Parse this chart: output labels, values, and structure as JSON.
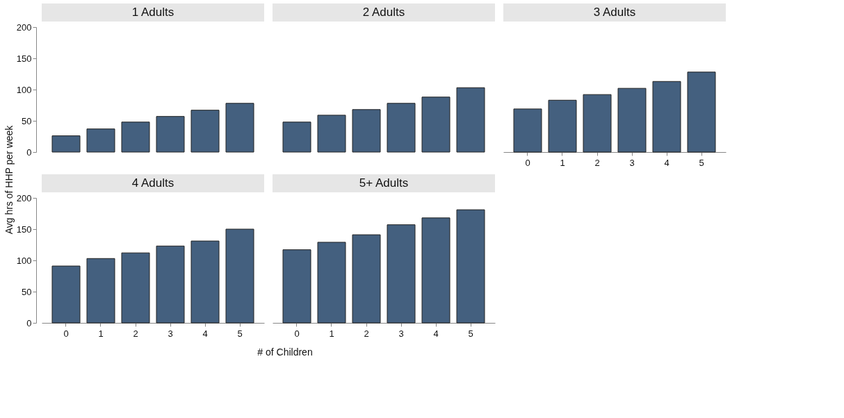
{
  "chart_data": [
    {
      "type": "bar",
      "title": "1 Adults",
      "ylabel": "Avg hrs of HHP per week",
      "categories": [
        "0",
        "1",
        "2",
        "3",
        "4",
        "5"
      ],
      "values": [
        26,
        37,
        48,
        57,
        67,
        78
      ],
      "color": "#44607f",
      "ylim": [
        0,
        200
      ],
      "yticks": [
        0,
        50,
        100,
        150,
        200
      ],
      "tick_labels": "y"
    },
    {
      "type": "bar",
      "title": "2 Adults",
      "categories": [
        "0",
        "1",
        "2",
        "3",
        "4",
        "5"
      ],
      "values": [
        48,
        59,
        68,
        78,
        88,
        103
      ],
      "color": "#44607f",
      "ylim": [
        0,
        200
      ],
      "yticks": [
        0,
        50,
        100,
        150,
        200
      ],
      "tick_labels": false
    },
    {
      "type": "bar",
      "title": "3 Adults",
      "categories": [
        "0",
        "1",
        "2",
        "3",
        "4",
        "5"
      ],
      "values": [
        69,
        83,
        92,
        102,
        113,
        128
      ],
      "color": "#44607f",
      "ylim": [
        0,
        200
      ],
      "yticks": [
        0,
        50,
        100,
        150,
        200
      ],
      "tick_labels": "x"
    },
    {
      "type": "bar",
      "title": "4 Adults",
      "xlabel": "# of Children",
      "categories": [
        "0",
        "1",
        "2",
        "3",
        "4",
        "5"
      ],
      "values": [
        91,
        103,
        112,
        123,
        131,
        150
      ],
      "color": "#44607f",
      "ylim": [
        0,
        200
      ],
      "yticks": [
        0,
        50,
        100,
        150,
        200
      ]
    },
    {
      "type": "bar",
      "title": "5+ Adults",
      "categories": [
        "0",
        "1",
        "2",
        "3",
        "4",
        "5"
      ],
      "values": [
        117,
        129,
        141,
        157,
        168,
        181
      ],
      "color": "#44607f",
      "ylim": [
        0,
        200
      ],
      "yticks": [
        0,
        50,
        100,
        150,
        200
      ],
      "tick_labels": "x"
    }
  ]
}
